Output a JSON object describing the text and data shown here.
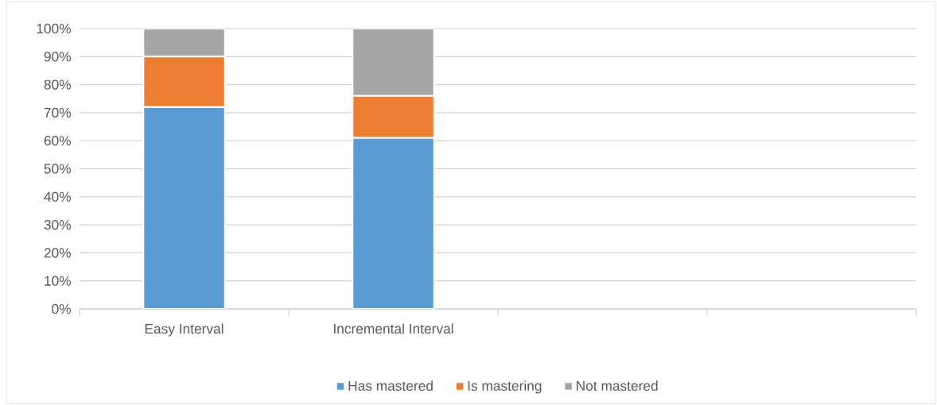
{
  "chart_data": {
    "type": "bar",
    "stacked": true,
    "categories": [
      "Easy Interval",
      "Incremental Interval",
      null,
      null
    ],
    "series": [
      {
        "name": "Has mastered",
        "color": "#5b9bd5",
        "values": [
          72,
          61,
          null,
          null
        ]
      },
      {
        "name": "Is mastering",
        "color": "#ed7d31",
        "values": [
          18,
          15,
          null,
          null
        ]
      },
      {
        "name": "Not mastered",
        "color": "#a5a5a5",
        "values": [
          10,
          24,
          null,
          null
        ]
      }
    ],
    "ylim": [
      0,
      100
    ],
    "yticks": [
      {
        "value": 0,
        "label": "0%"
      },
      {
        "value": 10,
        "label": "10%"
      },
      {
        "value": 20,
        "label": "20%"
      },
      {
        "value": 30,
        "label": "30%"
      },
      {
        "value": 40,
        "label": "40%"
      },
      {
        "value": 50,
        "label": "50%"
      },
      {
        "value": 60,
        "label": "60%"
      },
      {
        "value": 70,
        "label": "70%"
      },
      {
        "value": 80,
        "label": "80%"
      },
      {
        "value": 90,
        "label": "90%"
      },
      {
        "value": 100,
        "label": "100%"
      }
    ],
    "grid": "y",
    "legend": "bottom"
  }
}
